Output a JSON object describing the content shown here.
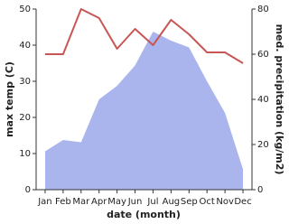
{
  "chart_data": {
    "type": "line",
    "x_label": "date (month)",
    "y_label": "max temp (C)",
    "y2_label": "med. precipitation (kg/m2)",
    "categories": [
      "Jan",
      "Feb",
      "Mar",
      "Apr",
      "May",
      "Jun",
      "Jul",
      "Aug",
      "Sep",
      "Oct",
      "Nov",
      "Dec"
    ],
    "series": [
      {
        "name": "med. precipitation (kg/m2)",
        "type": "area",
        "axis": "y2",
        "color": "#aab5ee",
        "values": [
          17,
          22,
          21,
          40,
          46,
          55,
          70,
          66,
          63,
          48,
          34,
          9
        ]
      },
      {
        "name": "max temp (C)",
        "type": "line",
        "axis": "y",
        "color": "#c85656",
        "values": [
          37.5,
          37.5,
          50,
          47.5,
          39,
          44.5,
          40,
          47,
          43,
          38,
          38,
          35
        ]
      }
    ],
    "ylim": [
      0,
      50
    ],
    "yticks": [
      0,
      10,
      20,
      30,
      40,
      50
    ],
    "y2lim": [
      0,
      80
    ],
    "y2ticks": [
      0,
      20,
      40,
      60,
      80
    ]
  }
}
